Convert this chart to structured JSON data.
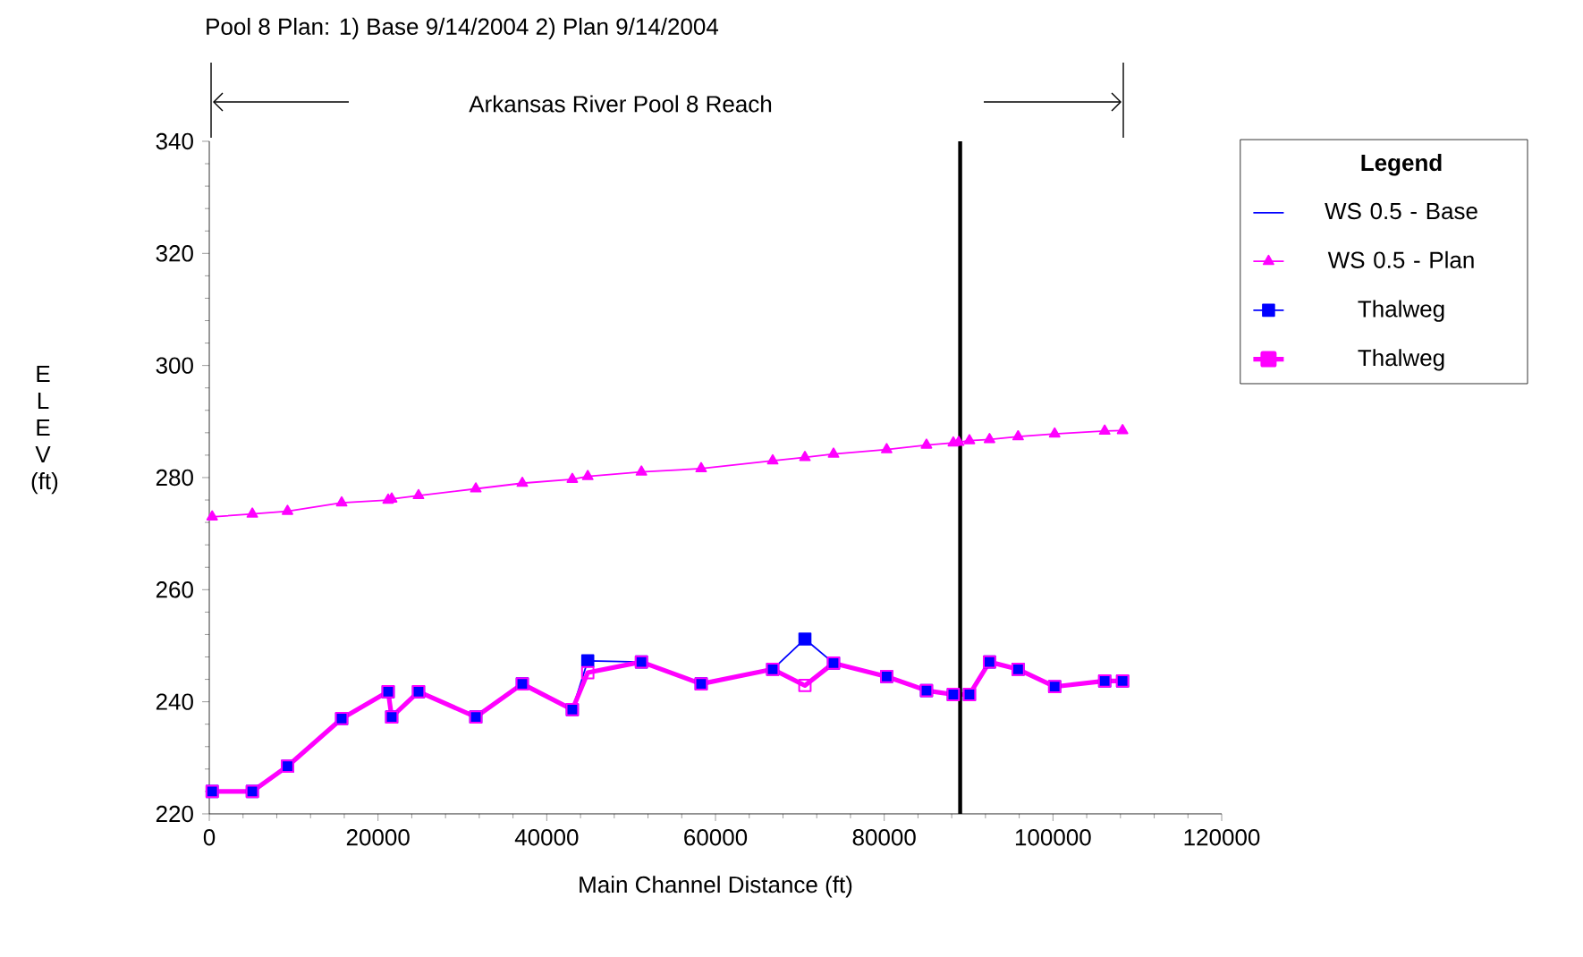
{
  "chart_data": {
    "type": "line",
    "title": "Pool 8 Plan: 1) Base 9/14/2004 2) Plan 9/14/2004",
    "annotations": [
      "Arkansas River Pool 8 Reach"
    ],
    "xlabel": "Main Channel Distance (ft)",
    "ylabel": "E L E V (ft)",
    "legend_title": "Legend",
    "xlim": [
      0,
      120000
    ],
    "xticks": [
      0,
      20000,
      40000,
      60000,
      80000,
      100000,
      120000
    ],
    "ylim": [
      220,
      340
    ],
    "yticks": [
      220,
      240,
      260,
      280,
      300,
      320,
      340
    ],
    "grid": false,
    "legend": "right",
    "ref_lines": [
      {
        "axis": "x",
        "value": 89000,
        "color": "#000000"
      }
    ],
    "series": [
      {
        "name": "WS  0.5 - Base",
        "color": "#0000ff",
        "marker": "none",
        "values": [
          null,
          null,
          null,
          null,
          null,
          null,
          null,
          null,
          null,
          null,
          null,
          null,
          null,
          null,
          null,
          null,
          null,
          null,
          null,
          null,
          null,
          null,
          null,
          null,
          null,
          null
        ]
      },
      {
        "name": "WS  0.5 - Plan",
        "color": "#ff00ff",
        "marker": "triangle",
        "x": [
          340,
          5100,
          9270,
          15690,
          21200,
          21620,
          24800,
          31590,
          37100,
          43030,
          44860,
          51220,
          58300,
          66780,
          70600,
          73990,
          80290,
          85010,
          88190,
          88820,
          90100,
          92480,
          95870,
          100200,
          106130,
          108250
        ],
        "values": [
          273,
          273.5,
          274,
          275.5,
          276,
          276.2,
          276.8,
          278,
          279,
          279.7,
          280.2,
          281,
          281.6,
          283,
          283.6,
          284.2,
          285,
          285.8,
          286.2,
          286.3,
          286.6,
          286.8,
          287.3,
          287.8,
          288.3,
          288.4
        ]
      },
      {
        "name": "Thalweg",
        "color": "#0000ff",
        "marker": "square",
        "x": [
          340,
          5100,
          9270,
          15690,
          21200,
          21620,
          24800,
          31590,
          37100,
          43030,
          44860,
          51220,
          58300,
          66780,
          70600,
          73990,
          80290,
          85010,
          88190,
          90100,
          92480,
          95870,
          100200,
          106130,
          108250
        ],
        "values": [
          224,
          224,
          228.5,
          237,
          241.8,
          237.3,
          241.8,
          237.3,
          243.2,
          238.6,
          247.3,
          247.1,
          243.2,
          245.8,
          251.2,
          246.9,
          244.5,
          242,
          241.3,
          241.3,
          247.1,
          245.8,
          242.7,
          243.7,
          243.7
        ]
      },
      {
        "name": "Thalweg",
        "color": "#ff00ff",
        "marker": "square",
        "x": [
          340,
          5100,
          9270,
          15690,
          21200,
          21620,
          24800,
          31590,
          37100,
          43030,
          44860,
          51220,
          58300,
          66780,
          70600,
          73990,
          80290,
          85010,
          88190,
          90100,
          92480,
          95870,
          100200,
          106130,
          108250
        ],
        "values": [
          224,
          224,
          228.5,
          237,
          241.8,
          237.3,
          241.8,
          237.3,
          243.2,
          238.6,
          245.2,
          247.1,
          243.2,
          245.8,
          242.9,
          246.9,
          244.5,
          242,
          241.3,
          241.3,
          247.1,
          245.8,
          242.7,
          243.7,
          243.7
        ]
      }
    ]
  }
}
